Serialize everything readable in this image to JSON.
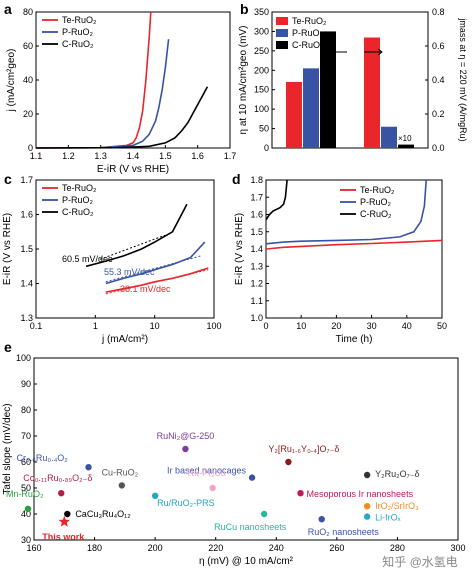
{
  "watermark": "知乎 @水氢电",
  "chart_data": [
    {
      "id": "a",
      "panel_label": "a",
      "type": "line",
      "xlabel": "E-iR (V vs RHE)",
      "ylabel": "j (mA/cm²geo)",
      "xlim": [
        1.1,
        1.7
      ],
      "ylim": [
        0,
        80
      ],
      "xticks": [
        "1.1",
        "1.2",
        "1.3",
        "1.4",
        "1.5",
        "1.6",
        "1.7"
      ],
      "yticks": [
        "0",
        "20",
        "40",
        "60",
        "80"
      ],
      "legend": [
        "Te-RuO₂",
        "P-RuO₂",
        "C-RuO₂"
      ],
      "series": [
        {
          "name": "Te-RuO₂",
          "color": "#e8262b",
          "x": [
            1.1,
            1.3,
            1.38,
            1.4,
            1.41,
            1.42,
            1.43,
            1.44,
            1.45,
            1.455
          ],
          "y": [
            0,
            0.2,
            1.5,
            3,
            6,
            12,
            22,
            40,
            65,
            80
          ]
        },
        {
          "name": "P-RuO₂",
          "color": "#3953a4",
          "x": [
            1.1,
            1.3,
            1.4,
            1.43,
            1.45,
            1.47,
            1.48,
            1.49,
            1.5,
            1.51
          ],
          "y": [
            0,
            0.2,
            1.5,
            4,
            8,
            16,
            24,
            34,
            47,
            64
          ]
        },
        {
          "name": "C-RuO₂",
          "color": "#000000",
          "x": [
            1.1,
            1.35,
            1.45,
            1.5,
            1.53,
            1.55,
            1.57,
            1.59,
            1.61,
            1.63
          ],
          "y": [
            0,
            0.2,
            1,
            3,
            6,
            10,
            15,
            22,
            29,
            36
          ]
        }
      ]
    },
    {
      "id": "b",
      "panel_label": "b",
      "type": "bar",
      "ylabel_left": "η at 10 mA/cm²geo (mV)",
      "ylabel_right": "jmass at η = 220 mV (A/mgRu)",
      "ylim_left": [
        0,
        350
      ],
      "ylim_right": [
        0,
        0.8
      ],
      "yticks_left": [
        "0",
        "50",
        "100",
        "150",
        "200",
        "250",
        "300",
        "350"
      ],
      "yticks_right": [
        "0.0",
        "0.2",
        "0.4",
        "0.6",
        "0.8"
      ],
      "legend": [
        "Te-RuO₂",
        "P-RuO₂",
        "C-RuO₂"
      ],
      "annotation": "×10",
      "series": [
        {
          "name": "Te-RuO₂",
          "color": "#e8262b",
          "overpotential": 170,
          "jmass": 0.65
        },
        {
          "name": "P-RuO₂",
          "color": "#3953a4",
          "overpotential": 205,
          "jmass": 0.125
        },
        {
          "name": "C-RuO₂",
          "color": "#000000",
          "overpotential": 300,
          "jmass": 0.02
        }
      ]
    },
    {
      "id": "c",
      "panel_label": "c",
      "type": "line",
      "xlabel": "j (mA/cm²)",
      "ylabel": "E-iR (V vs RHE)",
      "xscale": "log",
      "xlim": [
        0.1,
        100
      ],
      "ylim": [
        1.3,
        1.7
      ],
      "xticks": [
        "0.1",
        "1",
        "10",
        "100"
      ],
      "yticks": [
        "1.3",
        "1.4",
        "1.5",
        "1.6",
        "1.7"
      ],
      "legend": [
        "Te-RuO₂",
        "P-RuO₂",
        "C-RuO₂"
      ],
      "annotations": [
        "60.5 mV/dec",
        "55.3 mV/dec",
        "38.1 mV/dec"
      ],
      "series": [
        {
          "name": "Te-RuO₂",
          "color": "#e8262b",
          "x": [
            1.5,
            3,
            6,
            10,
            20,
            40,
            80
          ],
          "y": [
            1.375,
            1.385,
            1.395,
            1.405,
            1.415,
            1.428,
            1.445
          ]
        },
        {
          "name": "P-RuO₂",
          "color": "#3953a4",
          "x": [
            1.5,
            3,
            6,
            10,
            20,
            40,
            70
          ],
          "y": [
            1.4,
            1.415,
            1.428,
            1.44,
            1.455,
            1.475,
            1.52
          ]
        },
        {
          "name": "C-RuO₂",
          "color": "#000000",
          "x": [
            0.7,
            1.5,
            3,
            6,
            10,
            20,
            35
          ],
          "y": [
            1.45,
            1.465,
            1.48,
            1.5,
            1.52,
            1.55,
            1.63
          ]
        }
      ]
    },
    {
      "id": "d",
      "panel_label": "d",
      "type": "line",
      "xlabel": "Time (h)",
      "ylabel": "E-iR (V vs RHE)",
      "xlim": [
        0,
        50
      ],
      "ylim": [
        1.0,
        1.8
      ],
      "xticks": [
        "0",
        "10",
        "20",
        "30",
        "40",
        "50"
      ],
      "yticks": [
        "1.0",
        "1.1",
        "1.2",
        "1.3",
        "1.4",
        "1.5",
        "1.6",
        "1.7",
        "1.8"
      ],
      "legend": [
        "Te-RuO₂",
        "P-RuO₂",
        "C-RuO₂"
      ],
      "series": [
        {
          "name": "Te-RuO₂",
          "color": "#e8262b",
          "x": [
            0,
            5,
            10,
            20,
            30,
            40,
            50
          ],
          "y": [
            1.4,
            1.41,
            1.415,
            1.425,
            1.432,
            1.44,
            1.45
          ]
        },
        {
          "name": "P-RuO₂",
          "color": "#3953a4",
          "x": [
            0,
            5,
            10,
            20,
            30,
            38,
            42,
            44,
            45,
            45.5
          ],
          "y": [
            1.43,
            1.44,
            1.445,
            1.45,
            1.455,
            1.47,
            1.5,
            1.56,
            1.65,
            1.8
          ]
        },
        {
          "name": "C-RuO₂",
          "color": "#000000",
          "x": [
            0,
            1,
            2,
            3,
            4,
            5,
            5.5,
            6
          ],
          "y": [
            1.57,
            1.6,
            1.62,
            1.63,
            1.64,
            1.66,
            1.7,
            1.8
          ]
        }
      ]
    },
    {
      "id": "e",
      "panel_label": "e",
      "type": "scatter",
      "xlabel": "η (mV) @ 10 mA/cm²",
      "ylabel": "Tafel slope (mV/dec)",
      "xlim": [
        160,
        300
      ],
      "ylim": [
        30,
        100
      ],
      "xticks": [
        "160",
        "180",
        "200",
        "220",
        "240",
        "260",
        "280",
        "300"
      ],
      "yticks": [
        "30",
        "40",
        "50",
        "60",
        "70",
        "80",
        "90",
        "100"
      ],
      "points": [
        {
          "label": "RuNi₂@G-250",
          "x": 210,
          "y": 65,
          "color": "#7b3f98",
          "shape": "circle"
        },
        {
          "label": "Cr₀.₆Ru₀.₄O₂",
          "x": 178,
          "y": 58,
          "color": "#3953a4",
          "shape": "circle"
        },
        {
          "label": "Y₂[Ru₁.₆Y₀.₄]O₇₋δ",
          "x": 244,
          "y": 60,
          "color": "#8b1a1a",
          "shape": "circle"
        },
        {
          "label": "Ir based nanocages",
          "x": 232,
          "y": 54,
          "color": "#3953a4",
          "shape": "circle"
        },
        {
          "label": "Y₂Ru₂O₇₋δ",
          "x": 270,
          "y": 55,
          "color": "#333333",
          "shape": "circle"
        },
        {
          "label": "Co₀.₁₁Ru₀.₈₉O₂₋δ",
          "x": 169,
          "y": 48,
          "color": "#b02045",
          "shape": "circle"
        },
        {
          "label": "Ru-Pt₃Cu",
          "x": 219,
          "y": 50,
          "color": "#f5a3c7",
          "shape": "circle"
        },
        {
          "label": "Mesoporous Ir nanosheets",
          "x": 248,
          "y": 48,
          "color": "#c2185b",
          "shape": "circle"
        },
        {
          "label": "Cu-RuO₂",
          "x": 189,
          "y": 51,
          "color": "#555555",
          "shape": "circle"
        },
        {
          "label": "Ru/RuO₂-PRS",
          "x": 200,
          "y": 47,
          "color": "#26a7c7",
          "shape": "circle"
        },
        {
          "label": "Mn-RuO₂",
          "x": 158,
          "y": 42,
          "color": "#2e9e44",
          "shape": "circle"
        },
        {
          "label": "IrO₂/SrIrO₃",
          "x": 270,
          "y": 43,
          "color": "#f08c1e",
          "shape": "circle"
        },
        {
          "label": "CaCu₃Ru₄O₁₂",
          "x": 171,
          "y": 40,
          "color": "#000000",
          "shape": "circle"
        },
        {
          "label": "RuCu nanosheets",
          "x": 236,
          "y": 40,
          "color": "#2bb5a0",
          "shape": "circle"
        },
        {
          "label": "Li-IrOₓ",
          "x": 270,
          "y": 39,
          "color": "#26a7c7",
          "shape": "circle"
        },
        {
          "label": "RuO₂ nanosheets",
          "x": 255,
          "y": 38,
          "color": "#3953a4",
          "shape": "circle"
        },
        {
          "label": "This work",
          "x": 170,
          "y": 37,
          "color": "#e8262b",
          "shape": "star"
        }
      ]
    }
  ]
}
